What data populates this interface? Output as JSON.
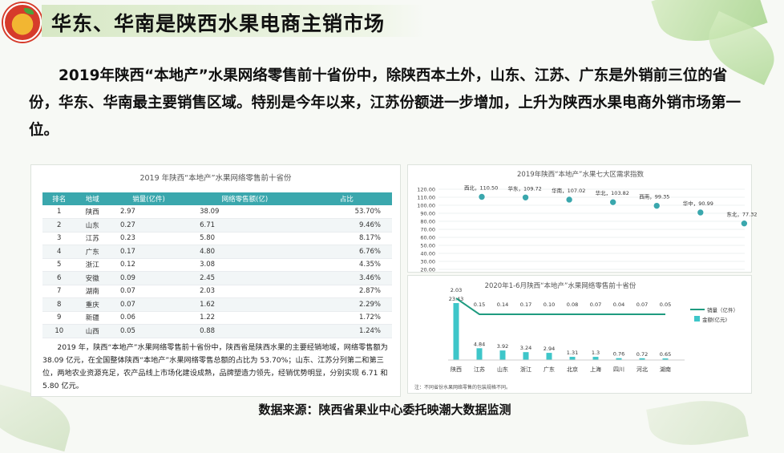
{
  "header": {
    "title": "华东、华南是陕西水果电商主销市场"
  },
  "intro": "2019年陕西“本地产”水果网络零售前十省份中，除陕西本土外，山东、江苏、广东是外销前三位的省份，华东、华南最主要销售区域。特别是今年以来，江苏份额进一步增加，上升为陕西水果电商外销市场第一位。",
  "ranking_table": {
    "title": "2019 年陕西“本地产”水果网络零售前十省份",
    "headers": [
      "排名",
      "地域",
      "销量(亿件)",
      "网络零售额(亿)",
      "占比"
    ],
    "rows": [
      [
        "1",
        "陕西",
        "2.97",
        "38.09",
        "53.70%"
      ],
      [
        "2",
        "山东",
        "0.27",
        "6.71",
        "9.46%"
      ],
      [
        "3",
        "江苏",
        "0.23",
        "5.80",
        "8.17%"
      ],
      [
        "4",
        "广东",
        "0.17",
        "4.80",
        "6.76%"
      ],
      [
        "5",
        "浙江",
        "0.12",
        "3.08",
        "4.35%"
      ],
      [
        "6",
        "安徽",
        "0.09",
        "2.45",
        "3.46%"
      ],
      [
        "7",
        "湖南",
        "0.07",
        "2.03",
        "2.87%"
      ],
      [
        "8",
        "重庆",
        "0.07",
        "1.62",
        "2.29%"
      ],
      [
        "9",
        "新疆",
        "0.06",
        "1.22",
        "1.72%"
      ],
      [
        "10",
        "山西",
        "0.05",
        "0.88",
        "1.24%"
      ]
    ],
    "note": "2019 年，陕西“本地产”水果网络零售前十省份中，陕西省是陕西水果的主要经销地域，网络零售额为 38.09 亿元，在全国整体陕西“本地产”水果网络零售总额的占比为 53.70%；山东、江苏分列第二和第三位，两地农业资源充足，农产品线上市场化建设成熟，品牌塑造力领先，经销优势明显，分别实现 6.71 和 5.80 亿元。"
  },
  "chart_data": [
    {
      "type": "scatter",
      "title": "2019年陕西“本地产”水果七大区需求指数",
      "categories": [
        "西北",
        "华东",
        "华南",
        "华北",
        "西南",
        "华中",
        "东北"
      ],
      "values": [
        110.5,
        109.72,
        107.02,
        103.82,
        99.35,
        90.99,
        77.32
      ],
      "ylim": [
        20,
        120
      ],
      "yticks": [
        "120.00",
        "110.00",
        "100.00",
        "90.00",
        "80.00",
        "70.00",
        "60.00",
        "50.00",
        "40.00",
        "30.00",
        "20.00"
      ],
      "point_labels": [
        "西北，110.50",
        "华东，109.72",
        "华南，107.02",
        "华北，103.82",
        "西南，99.35",
        "华中，90.99",
        "东北，77.32"
      ],
      "color": "#3aa7ad"
    },
    {
      "type": "bar",
      "title": "2020年1-6月陕西“本地产”水果网络零售前十省份",
      "categories": [
        "陕西",
        "江苏",
        "山东",
        "浙江",
        "广东",
        "北京",
        "上海",
        "四川",
        "河北",
        "湖南"
      ],
      "series": [
        {
          "name": "金额(亿元)",
          "values": [
            23.43,
            4.84,
            3.92,
            3.24,
            2.94,
            1.31,
            1.3,
            0.76,
            0.72,
            0.65
          ],
          "color": "#3ec6c9"
        },
        {
          "name": "销量（亿件）",
          "values": [
            2.03,
            0.15,
            0.14,
            0.17,
            0.1,
            0.08,
            0.07,
            0.04,
            0.07,
            0.05
          ],
          "color": "#1f9b80"
        }
      ],
      "note": "注：不同省份水果网络零售的包装规格不同。"
    }
  ],
  "source": "数据来源：陕西省果业中心委托映潮大数据监测"
}
